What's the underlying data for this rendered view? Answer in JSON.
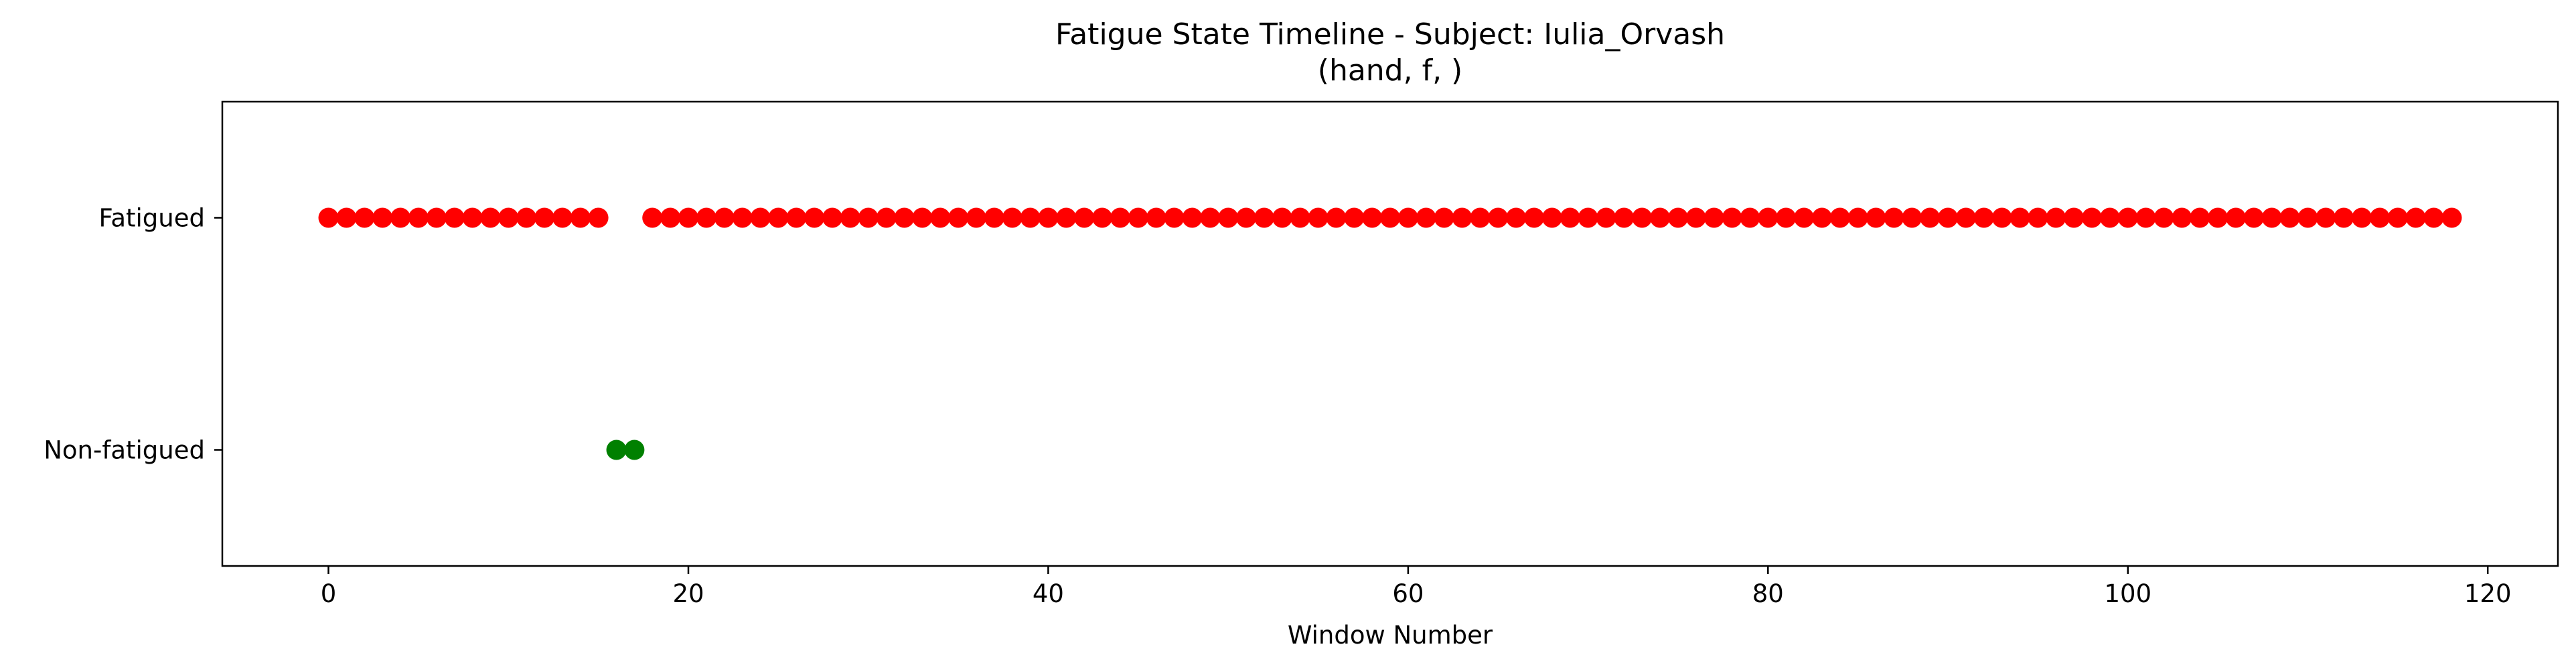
{
  "chart_data": {
    "type": "scatter",
    "title": "Fatigue State Timeline - Subject: Iulia_Orvash",
    "subtitle": "(hand, f, )",
    "xlabel": "Window Number",
    "ylabel": "",
    "xlim": [
      -5.9,
      123.9
    ],
    "ylim": [
      -0.5,
      1.5
    ],
    "xticks": [
      0,
      20,
      40,
      60,
      80,
      100,
      120
    ],
    "yticks": [
      {
        "value": 0,
        "label": "Non-fatigued"
      },
      {
        "value": 1,
        "label": "Fatigued"
      }
    ],
    "grid": false,
    "series": [
      {
        "color": "#ff0000",
        "y": 1,
        "x": [
          0,
          1,
          2,
          3,
          4,
          5,
          6,
          7,
          8,
          9,
          10,
          11,
          12,
          13,
          14,
          15,
          18,
          19,
          20,
          21,
          22,
          23,
          24,
          25,
          26,
          27,
          28,
          29,
          30,
          31,
          32,
          33,
          34,
          35,
          36,
          37,
          38,
          39,
          40,
          41,
          42,
          43,
          44,
          45,
          46,
          47,
          48,
          49,
          50,
          51,
          52,
          53,
          54,
          55,
          56,
          57,
          58,
          59,
          60,
          61,
          62,
          63,
          64,
          65,
          66,
          67,
          68,
          69,
          70,
          71,
          72,
          73,
          74,
          75,
          76,
          77,
          78,
          79,
          80,
          81,
          82,
          83,
          84,
          85,
          86,
          87,
          88,
          89,
          90,
          91,
          92,
          93,
          94,
          95,
          96,
          97,
          98,
          99,
          100,
          101,
          102,
          103,
          104,
          105,
          106,
          107,
          108,
          109,
          110,
          111,
          112,
          113,
          114,
          115,
          116,
          117,
          118
        ]
      },
      {
        "color": "#008000",
        "y": 0,
        "x": [
          16,
          17
        ]
      }
    ]
  }
}
